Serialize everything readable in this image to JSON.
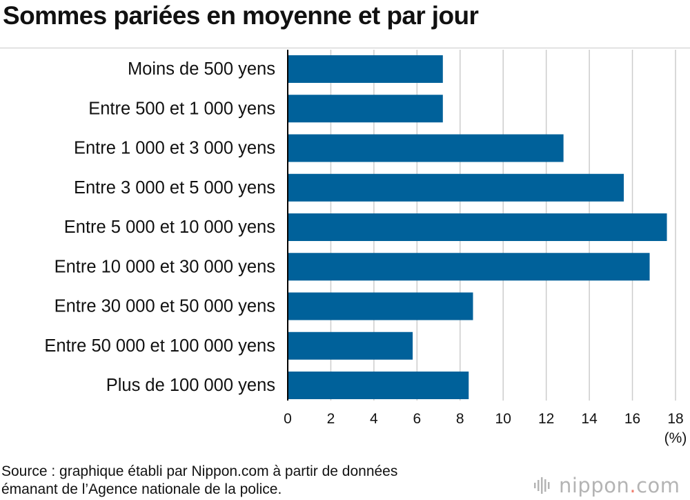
{
  "title": "Sommes pariées en moyenne et par jour",
  "source": {
    "line1": "Source : graphique établi par Nippon.com à partir de données",
    "line2": "émanant de l’Agence nationale de la police."
  },
  "logo": {
    "word": "nippon",
    "dot": ".",
    "suffix": "com"
  },
  "colors": {
    "bar": "#00619a",
    "grid": "#cccccc",
    "axis": "#000000",
    "logo_dot": "#ef7e6e"
  },
  "chart_data": {
    "type": "bar",
    "orientation": "horizontal",
    "title": "Sommes pariées en moyenne et par jour",
    "unit": "(%)",
    "categories": [
      "Moins de 500 yens",
      "Entre 500 et 1 000 yens",
      "Entre 1 000 et 3 000 yens",
      "Entre 3 000 et 5 000 yens",
      "Entre 5 000 et 10 000 yens",
      "Entre 10 000 et 30 000 yens",
      "Entre 30 000 et 50 000 yens",
      "Entre 50 000 et 100 000 yens",
      "Plus de 100 000 yens"
    ],
    "values": [
      7.2,
      7.2,
      12.8,
      15.6,
      17.6,
      16.8,
      8.6,
      5.8,
      8.4
    ],
    "xlim": [
      0,
      18
    ],
    "xticks": [
      0,
      2,
      4,
      6,
      8,
      10,
      12,
      14,
      16,
      18
    ],
    "grid": true
  }
}
